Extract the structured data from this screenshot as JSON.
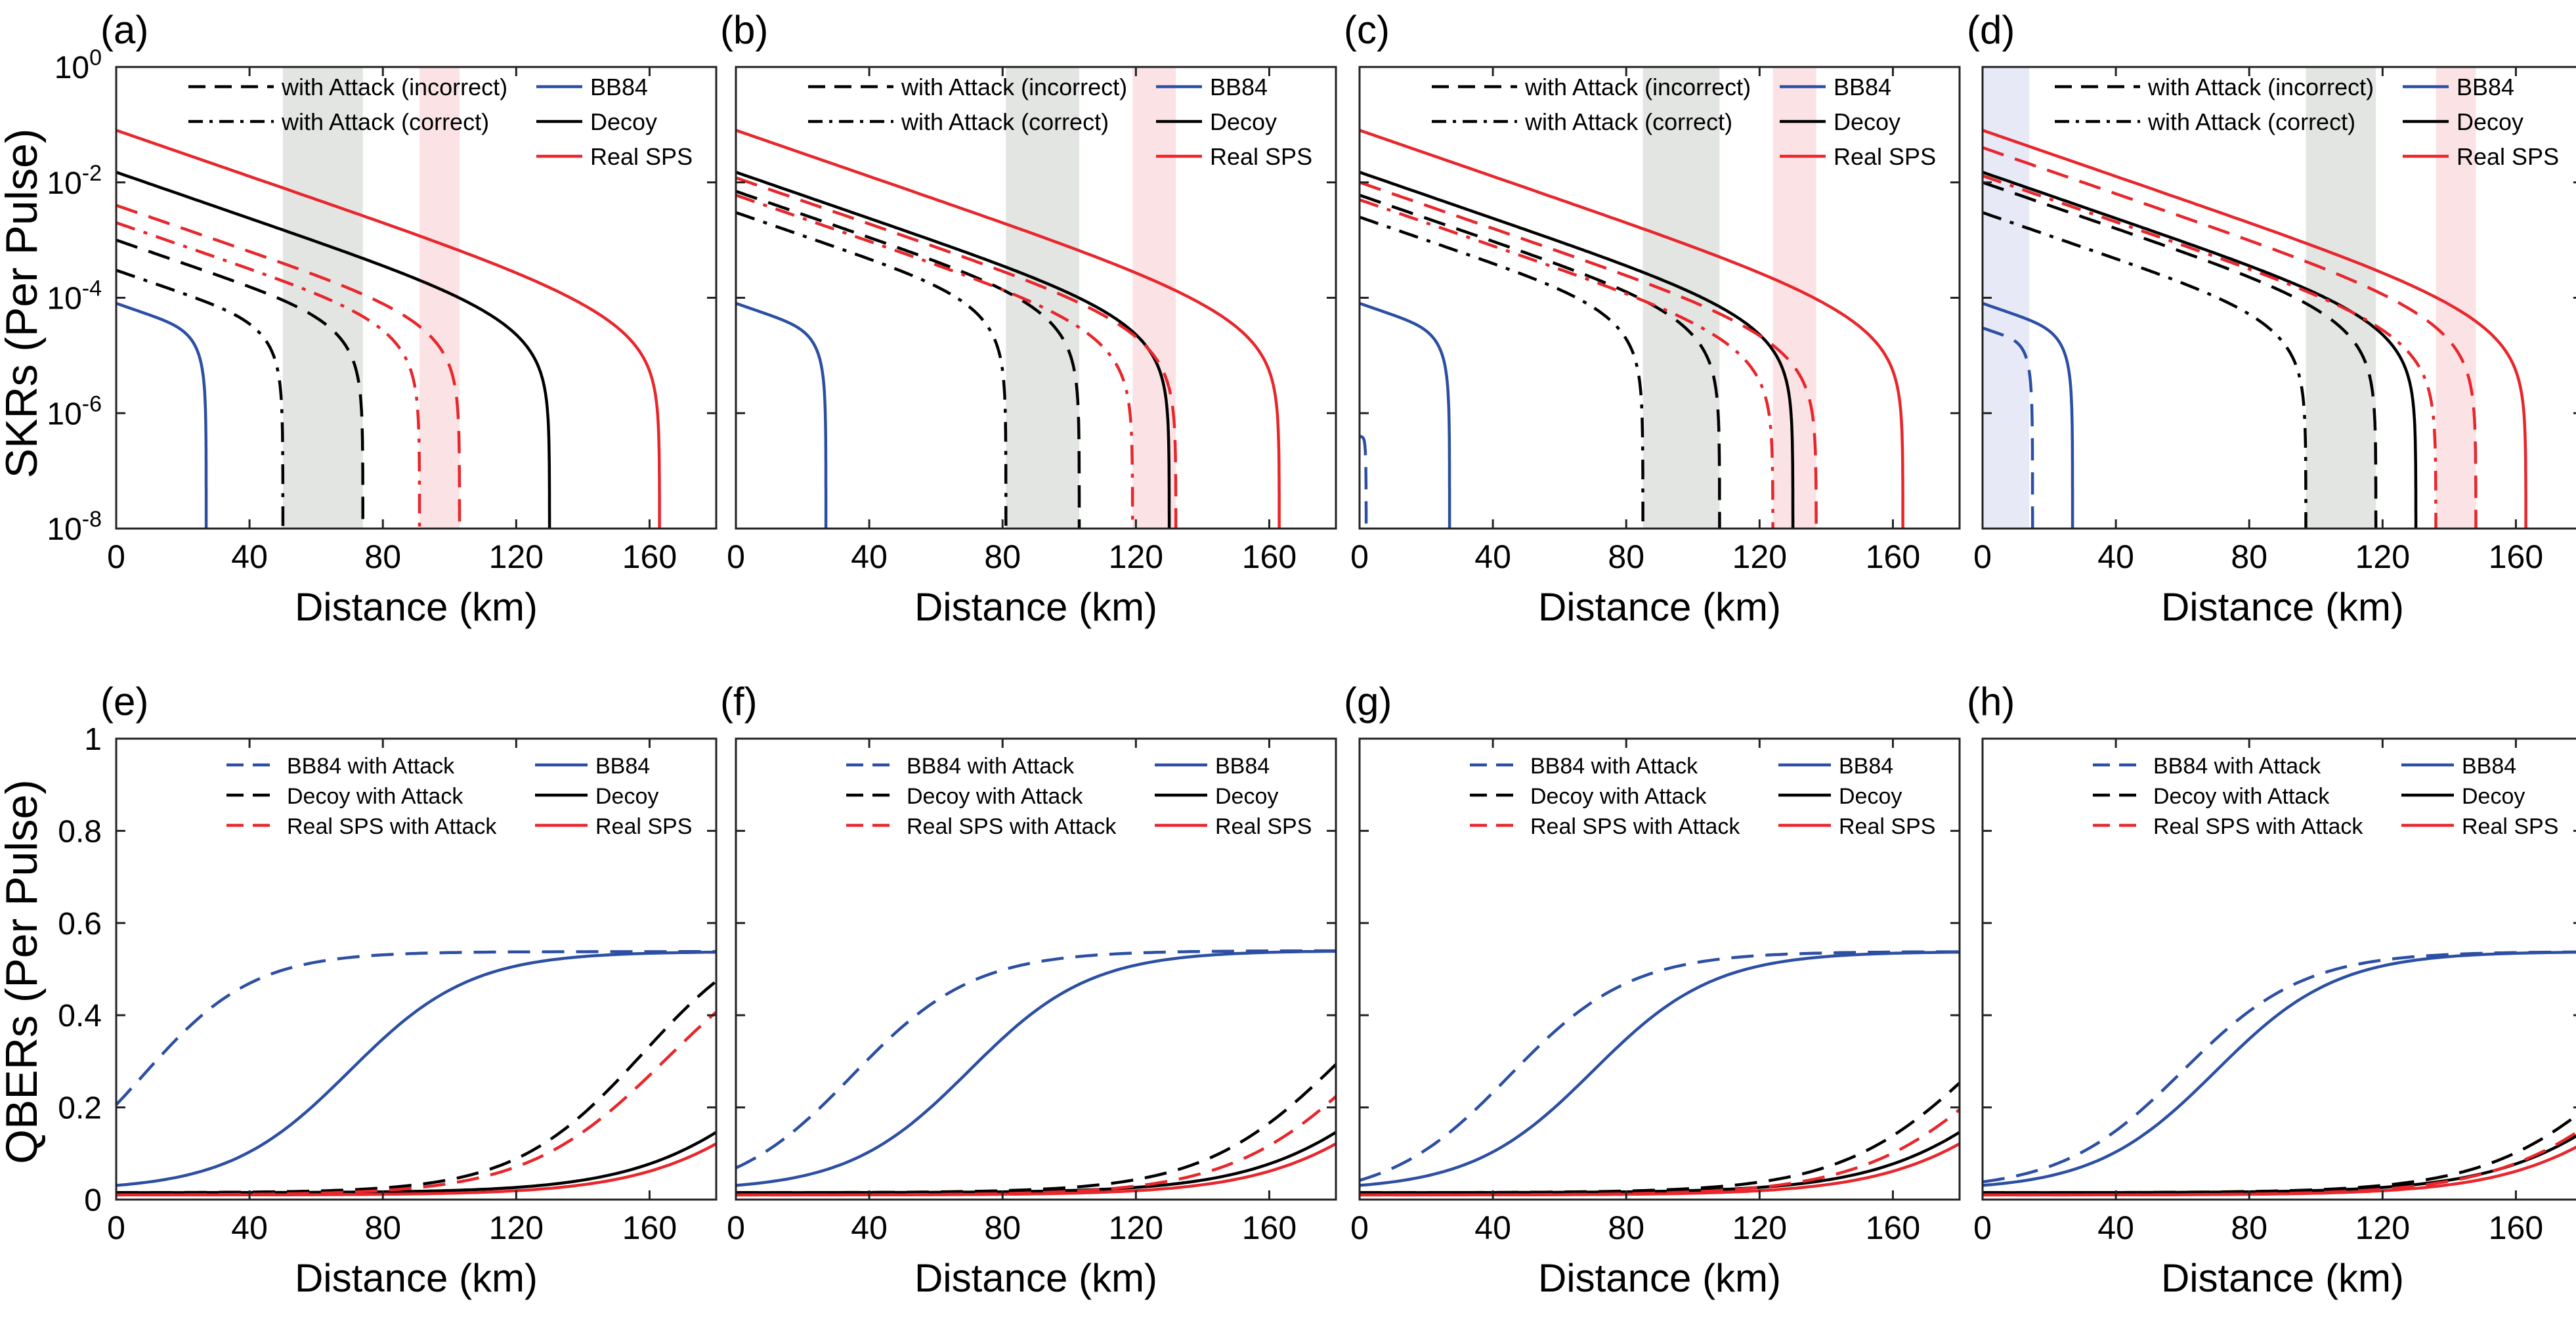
{
  "colors": {
    "blue": "#2C4FA3",
    "black": "#000000",
    "red": "#E8262B",
    "grey_band": "#E3E5E3",
    "pink_band": "#FBE3E5",
    "blue_band": "#E7EAF6"
  },
  "skr_ylabel": "SKRs (Per Pulse)",
  "qber_ylabel": "QBERs (Per Pulse)",
  "chart_data": [
    {
      "panel": "(a)",
      "type": "line",
      "yscale": "log",
      "xlabel": "Distance (km)",
      "ylabel": "SKRs (Per Pulse)",
      "xlim": [
        0,
        180
      ],
      "ylim": [
        1e-08,
        1
      ],
      "xticks": [
        0,
        40,
        80,
        120,
        160
      ],
      "yticks": [
        {
          "e": "0"
        },
        {
          "e": "-2"
        },
        {
          "e": "-4"
        },
        {
          "e": "-6"
        },
        {
          "e": "-8"
        }
      ],
      "legend": {
        "left": [
          {
            "label": "with Attack (incorrect)",
            "style": "dash",
            "color": "black"
          },
          {
            "label": "with Attack (correct)",
            "style": "dashdot",
            "color": "black"
          }
        ],
        "right": [
          {
            "label": "BB84",
            "color": "blue"
          },
          {
            "label": "Decoy",
            "color": "black"
          },
          {
            "label": "Real SPS",
            "color": "red"
          }
        ]
      },
      "bands": [
        {
          "from": 50,
          "to": 74,
          "color": "grey_band"
        },
        {
          "from": 91,
          "to": 103,
          "color": "pink_band"
        }
      ],
      "series": [
        {
          "name": "BB84",
          "style": "solid",
          "color": "blue",
          "y0": 8e-05,
          "cutoff": 27
        },
        {
          "name": "Decoy",
          "style": "solid",
          "color": "black",
          "y0": 0.015,
          "cutoff": 130
        },
        {
          "name": "Real SPS",
          "style": "solid",
          "color": "red",
          "y0": 0.08,
          "cutoff": 163
        },
        {
          "name": "Decoy with Attack (correct)",
          "style": "dashdot",
          "color": "black",
          "y0": 0.0003,
          "cutoff": 50
        },
        {
          "name": "Decoy with Attack (incorrect)",
          "style": "dash",
          "color": "black",
          "y0": 0.001,
          "cutoff": 74
        },
        {
          "name": "Real SPS with Attack (correct)",
          "style": "dashdot",
          "color": "red",
          "y0": 0.002,
          "cutoff": 91
        },
        {
          "name": "Real SPS with Attack (incorrect)",
          "style": "dash",
          "color": "red",
          "y0": 0.004,
          "cutoff": 103
        }
      ]
    },
    {
      "panel": "(b)",
      "type": "line",
      "yscale": "log",
      "xlabel": "Distance (km)",
      "ylabel": "",
      "xlim": [
        0,
        180
      ],
      "ylim": [
        1e-08,
        1
      ],
      "xticks": [
        0,
        40,
        80,
        120,
        160
      ],
      "yticks": [],
      "legend": {
        "left": [
          {
            "label": "with Attack (incorrect)",
            "style": "dash",
            "color": "black"
          },
          {
            "label": "with Attack (correct)",
            "style": "dashdot",
            "color": "black"
          }
        ],
        "right": [
          {
            "label": "BB84",
            "color": "blue"
          },
          {
            "label": "Decoy",
            "color": "black"
          },
          {
            "label": "Real SPS",
            "color": "red"
          }
        ]
      },
      "bands": [
        {
          "from": 81,
          "to": 103,
          "color": "grey_band"
        },
        {
          "from": 119,
          "to": 132,
          "color": "pink_band"
        }
      ],
      "series": [
        {
          "name": "BB84",
          "style": "solid",
          "color": "blue",
          "y0": 8e-05,
          "cutoff": 27
        },
        {
          "name": "Decoy",
          "style": "solid",
          "color": "black",
          "y0": 0.015,
          "cutoff": 130
        },
        {
          "name": "Real SPS",
          "style": "solid",
          "color": "red",
          "y0": 0.08,
          "cutoff": 163
        },
        {
          "name": "Decoy with Attack (correct)",
          "style": "dashdot",
          "color": "black",
          "y0": 0.003,
          "cutoff": 81
        },
        {
          "name": "Decoy with Attack (incorrect)",
          "style": "dash",
          "color": "black",
          "y0": 0.007,
          "cutoff": 103
        },
        {
          "name": "Real SPS with Attack (correct)",
          "style": "dashdot",
          "color": "red",
          "y0": 0.006,
          "cutoff": 119
        },
        {
          "name": "Real SPS with Attack (incorrect)",
          "style": "dash",
          "color": "red",
          "y0": 0.012,
          "cutoff": 132
        }
      ]
    },
    {
      "panel": "(c)",
      "type": "line",
      "yscale": "log",
      "xlabel": "Distance (km)",
      "ylabel": "",
      "xlim": [
        0,
        180
      ],
      "ylim": [
        1e-08,
        1
      ],
      "xticks": [
        0,
        40,
        80,
        120,
        160
      ],
      "yticks": [],
      "legend": {
        "left": [
          {
            "label": "with Attack (incorrect)",
            "style": "dash",
            "color": "black"
          },
          {
            "label": "with Attack (correct)",
            "style": "dashdot",
            "color": "black"
          }
        ],
        "right": [
          {
            "label": "BB84",
            "color": "blue"
          },
          {
            "label": "Decoy",
            "color": "black"
          },
          {
            "label": "Real SPS",
            "color": "red"
          }
        ]
      },
      "bands": [
        {
          "from": 85,
          "to": 108,
          "color": "grey_band"
        },
        {
          "from": 124,
          "to": 137,
          "color": "pink_band"
        }
      ],
      "series": [
        {
          "name": "BB84",
          "style": "solid",
          "color": "blue",
          "y0": 8e-05,
          "cutoff": 27
        },
        {
          "name": "BB84 with Attack",
          "style": "dash",
          "color": "blue",
          "y0": 4e-07,
          "cutoff": 2
        },
        {
          "name": "Decoy",
          "style": "solid",
          "color": "black",
          "y0": 0.015,
          "cutoff": 130
        },
        {
          "name": "Real SPS",
          "style": "solid",
          "color": "red",
          "y0": 0.08,
          "cutoff": 163
        },
        {
          "name": "Decoy with Attack (correct)",
          "style": "dashdot",
          "color": "black",
          "y0": 0.0025,
          "cutoff": 85
        },
        {
          "name": "Decoy with Attack (incorrect)",
          "style": "dash",
          "color": "black",
          "y0": 0.006,
          "cutoff": 108
        },
        {
          "name": "Real SPS with Attack (correct)",
          "style": "dashdot",
          "color": "red",
          "y0": 0.005,
          "cutoff": 124
        },
        {
          "name": "Real SPS with Attack (incorrect)",
          "style": "dash",
          "color": "red",
          "y0": 0.01,
          "cutoff": 137
        }
      ]
    },
    {
      "panel": "(d)",
      "type": "line",
      "yscale": "log",
      "xlabel": "Distance (km)",
      "ylabel": "",
      "xlim": [
        0,
        180
      ],
      "ylim": [
        1e-08,
        1
      ],
      "xticks": [
        0,
        40,
        80,
        120,
        160
      ],
      "yticks": [],
      "legend": {
        "left": [
          {
            "label": "with Attack (incorrect)",
            "style": "dash",
            "color": "black"
          },
          {
            "label": "with Attack (correct)",
            "style": "dashdot",
            "color": "black"
          }
        ],
        "right": [
          {
            "label": "BB84",
            "color": "blue"
          },
          {
            "label": "Decoy",
            "color": "black"
          },
          {
            "label": "Real SPS",
            "color": "red"
          }
        ]
      },
      "bands": [
        {
          "from": 0,
          "to": 14,
          "color": "blue_band"
        },
        {
          "from": 97,
          "to": 118,
          "color": "grey_band"
        },
        {
          "from": 136,
          "to": 148,
          "color": "pink_band"
        }
      ],
      "series": [
        {
          "name": "BB84",
          "style": "solid",
          "color": "blue",
          "y0": 8e-05,
          "cutoff": 27
        },
        {
          "name": "BB84 with Attack",
          "style": "dash",
          "color": "blue",
          "y0": 3e-05,
          "cutoff": 15
        },
        {
          "name": "Decoy",
          "style": "solid",
          "color": "black",
          "y0": 0.015,
          "cutoff": 130
        },
        {
          "name": "Real SPS",
          "style": "solid",
          "color": "red",
          "y0": 0.08,
          "cutoff": 163
        },
        {
          "name": "Decoy with Attack (correct)",
          "style": "dashdot",
          "color": "black",
          "y0": 0.003,
          "cutoff": 97
        },
        {
          "name": "Decoy with Attack (incorrect)",
          "style": "dash",
          "color": "black",
          "y0": 0.01,
          "cutoff": 118
        },
        {
          "name": "Real SPS with Attack (correct)",
          "style": "dashdot",
          "color": "red",
          "y0": 0.013,
          "cutoff": 136
        },
        {
          "name": "Real SPS with Attack (incorrect)",
          "style": "dash",
          "color": "red",
          "y0": 0.04,
          "cutoff": 148
        }
      ]
    },
    {
      "panel": "(e)",
      "type": "line",
      "yscale": "linear",
      "xlabel": "Distance (km)",
      "ylabel": "QBERs (Per Pulse)",
      "xlim": [
        0,
        180
      ],
      "ylim": [
        0,
        1
      ],
      "xticks": [
        0,
        40,
        80,
        120,
        160
      ],
      "yticks": [
        "0",
        "0.2",
        "0.4",
        "0.6",
        "0.8",
        "1"
      ],
      "legend": {
        "left": [
          {
            "label": "BB84 with Attack",
            "style": "dash",
            "color": "blue"
          },
          {
            "label": "Decoy with Attack",
            "style": "dash",
            "color": "black"
          },
          {
            "label": "Real SPS with Attack",
            "style": "dash",
            "color": "red"
          }
        ],
        "right": [
          {
            "label": "BB84",
            "color": "blue"
          },
          {
            "label": "Decoy",
            "color": "black"
          },
          {
            "label": "Real SPS",
            "color": "red"
          }
        ]
      },
      "bands": [],
      "series": [
        {
          "name": "BB84",
          "style": "solid",
          "color": "blue",
          "base": 0.02,
          "top": 0.538,
          "mid": 70,
          "k": 0.055
        },
        {
          "name": "BB84 with Attack",
          "style": "dash",
          "color": "blue",
          "base": 0.0,
          "top": 0.538,
          "mid": 8,
          "k": 0.06
        },
        {
          "name": "Decoy",
          "style": "solid",
          "color": "black",
          "base": 0.015,
          "top": 0.55,
          "mid": 205,
          "k": 0.045
        },
        {
          "name": "Decoy with Attack",
          "style": "dash",
          "color": "black",
          "base": 0.015,
          "top": 0.62,
          "mid": 158,
          "k": 0.052
        },
        {
          "name": "Real SPS",
          "style": "solid",
          "color": "red",
          "base": 0.01,
          "top": 0.55,
          "mid": 210,
          "k": 0.045
        },
        {
          "name": "Real SPS with Attack",
          "style": "dash",
          "color": "red",
          "base": 0.01,
          "top": 0.6,
          "mid": 165,
          "k": 0.048
        }
      ]
    },
    {
      "panel": "(f)",
      "type": "line",
      "yscale": "linear",
      "xlabel": "Distance (km)",
      "ylabel": "",
      "xlim": [
        0,
        180
      ],
      "ylim": [
        0,
        1
      ],
      "xticks": [
        0,
        40,
        80,
        120,
        160
      ],
      "yticks": [],
      "legend": {
        "left": [
          {
            "label": "BB84 with Attack",
            "style": "dash",
            "color": "blue"
          },
          {
            "label": "Decoy with Attack",
            "style": "dash",
            "color": "black"
          },
          {
            "label": "Real SPS with Attack",
            "style": "dash",
            "color": "red"
          }
        ],
        "right": [
          {
            "label": "BB84",
            "color": "blue"
          },
          {
            "label": "Decoy",
            "color": "black"
          },
          {
            "label": "Real SPS",
            "color": "red"
          }
        ]
      },
      "bands": [],
      "series": [
        {
          "name": "BB84",
          "style": "solid",
          "color": "blue",
          "base": 0.02,
          "top": 0.54,
          "mid": 70,
          "k": 0.055
        },
        {
          "name": "BB84 with Attack",
          "style": "dash",
          "color": "blue",
          "base": 0.0,
          "top": 0.54,
          "mid": 35,
          "k": 0.055
        },
        {
          "name": "Decoy",
          "style": "solid",
          "color": "black",
          "base": 0.015,
          "top": 0.55,
          "mid": 205,
          "k": 0.045
        },
        {
          "name": "Decoy with Attack",
          "style": "dash",
          "color": "black",
          "base": 0.015,
          "top": 0.6,
          "mid": 182,
          "k": 0.048
        },
        {
          "name": "Real SPS",
          "style": "solid",
          "color": "red",
          "base": 0.01,
          "top": 0.55,
          "mid": 210,
          "k": 0.045
        },
        {
          "name": "Real SPS with Attack",
          "style": "dash",
          "color": "red",
          "base": 0.01,
          "top": 0.6,
          "mid": 192,
          "k": 0.047
        }
      ]
    },
    {
      "panel": "(g)",
      "type": "line",
      "yscale": "linear",
      "xlabel": "Distance (km)",
      "ylabel": "",
      "xlim": [
        0,
        180
      ],
      "ylim": [
        0,
        1
      ],
      "xticks": [
        0,
        40,
        80,
        120,
        160
      ],
      "yticks": [],
      "legend": {
        "left": [
          {
            "label": "BB84 with Attack",
            "style": "dash",
            "color": "blue"
          },
          {
            "label": "Decoy with Attack",
            "style": "dash",
            "color": "black"
          },
          {
            "label": "Real SPS with Attack",
            "style": "dash",
            "color": "red"
          }
        ],
        "right": [
          {
            "label": "BB84",
            "color": "blue"
          },
          {
            "label": "Decoy",
            "color": "black"
          },
          {
            "label": "Real SPS",
            "color": "red"
          }
        ]
      },
      "bands": [],
      "series": [
        {
          "name": "BB84",
          "style": "solid",
          "color": "blue",
          "base": 0.02,
          "top": 0.538,
          "mid": 70,
          "k": 0.055
        },
        {
          "name": "BB84 with Attack",
          "style": "dash",
          "color": "blue",
          "base": 0.0,
          "top": 0.538,
          "mid": 45,
          "k": 0.055
        },
        {
          "name": "Decoy",
          "style": "solid",
          "color": "black",
          "base": 0.015,
          "top": 0.55,
          "mid": 205,
          "k": 0.045
        },
        {
          "name": "Decoy with Attack",
          "style": "dash",
          "color": "black",
          "base": 0.015,
          "top": 0.6,
          "mid": 188,
          "k": 0.047
        },
        {
          "name": "Real SPS",
          "style": "solid",
          "color": "red",
          "base": 0.01,
          "top": 0.55,
          "mid": 210,
          "k": 0.045
        },
        {
          "name": "Real SPS with Attack",
          "style": "dash",
          "color": "red",
          "base": 0.01,
          "top": 0.6,
          "mid": 197,
          "k": 0.046
        }
      ]
    },
    {
      "panel": "(h)",
      "type": "line",
      "yscale": "linear",
      "xlabel": "Distance (km)",
      "ylabel": "",
      "xlim": [
        0,
        180
      ],
      "ylim": [
        0,
        1
      ],
      "xticks": [
        0,
        40,
        80,
        120,
        160
      ],
      "yticks": [],
      "legend": {
        "left": [
          {
            "label": "BB84 with Attack",
            "style": "dash",
            "color": "blue"
          },
          {
            "label": "Decoy with Attack",
            "style": "dash",
            "color": "black"
          },
          {
            "label": "Real SPS with Attack",
            "style": "dash",
            "color": "red"
          }
        ],
        "right": [
          {
            "label": "BB84",
            "color": "blue"
          },
          {
            "label": "Decoy",
            "color": "black"
          },
          {
            "label": "Real SPS",
            "color": "red"
          }
        ]
      },
      "bands": [],
      "series": [
        {
          "name": "BB84",
          "style": "solid",
          "color": "blue",
          "base": 0.02,
          "top": 0.538,
          "mid": 70,
          "k": 0.055
        },
        {
          "name": "BB84 with Attack",
          "style": "dash",
          "color": "blue",
          "base": 0.02,
          "top": 0.538,
          "mid": 60,
          "k": 0.055
        },
        {
          "name": "Decoy",
          "style": "solid",
          "color": "black",
          "base": 0.015,
          "top": 0.55,
          "mid": 205,
          "k": 0.045
        },
        {
          "name": "Decoy with Attack",
          "style": "dash",
          "color": "black",
          "base": 0.015,
          "top": 0.6,
          "mid": 198,
          "k": 0.046
        },
        {
          "name": "Real SPS",
          "style": "solid",
          "color": "red",
          "base": 0.01,
          "top": 0.55,
          "mid": 210,
          "k": 0.045
        },
        {
          "name": "Real SPS with Attack",
          "style": "dash",
          "color": "red",
          "base": 0.01,
          "top": 0.6,
          "mid": 205,
          "k": 0.045
        }
      ]
    }
  ]
}
